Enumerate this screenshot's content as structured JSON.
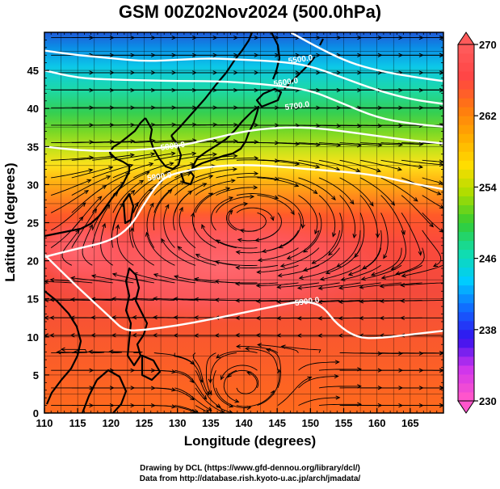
{
  "title": "GSM 00Z02Nov2024 (500.0hPa)",
  "xlabel": "Longitude (degrees)",
  "ylabel": "Latitude (degrees)",
  "credits": [
    "Drawing by DCL (https://www.gfd-dennou.org/library/dcl/)",
    "Data from http://database.rish.kyoto-u.ac.jp/arch/jmadata/"
  ],
  "chart_data": {
    "type": "heatmap",
    "variable": "temperature (K) shading, geopotential height contours, wind streamlines",
    "xlim": [
      110,
      170
    ],
    "ylim": [
      0,
      50
    ],
    "x_ticks": [
      110,
      115,
      120,
      125,
      130,
      135,
      140,
      145,
      150,
      155,
      160,
      165
    ],
    "y_ticks": [
      0,
      5,
      10,
      15,
      20,
      25,
      30,
      35,
      40,
      45
    ],
    "colorbar": {
      "min": 230,
      "max": 270,
      "tick_values": [
        230,
        238,
        246,
        254,
        262,
        270
      ],
      "tick_labels": [
        "230",
        "238",
        "246",
        "254",
        "262",
        "270"
      ]
    },
    "contour_labels": [
      {
        "text": "5500.0",
        "lon": 148.5,
        "lat": 46.4
      },
      {
        "text": "5600.0",
        "lon": 146.3,
        "lat": 43.4
      },
      {
        "text": "5700.0",
        "lon": 148.0,
        "lat": 40.3
      },
      {
        "text": "5800.0",
        "lon": 129.3,
        "lat": 35.0
      },
      {
        "text": "5900.0",
        "lon": 127.3,
        "lat": 31.0
      },
      {
        "text": "5900.0",
        "lon": 149.5,
        "lat": 14.6
      }
    ],
    "contours": [
      {
        "level": 5500,
        "points": [
          [
            147,
            50
          ],
          [
            152,
            47.6
          ],
          [
            156,
            46
          ],
          [
            160,
            45
          ],
          [
            165,
            44.2
          ],
          [
            170,
            43.6
          ]
        ]
      },
      {
        "level": 5600,
        "points": [
          [
            110,
            47.6
          ],
          [
            115,
            47
          ],
          [
            120,
            46.6
          ],
          [
            125,
            46.2
          ],
          [
            130,
            46.4
          ],
          [
            135,
            46.6
          ],
          [
            140,
            46.4
          ],
          [
            145,
            46.2
          ],
          [
            150,
            45.6
          ],
          [
            155,
            44
          ],
          [
            160,
            42.4
          ],
          [
            165,
            41.2
          ],
          [
            170,
            40.6
          ]
        ]
      },
      {
        "level": 5700,
        "points": [
          [
            110,
            45
          ],
          [
            115,
            44
          ],
          [
            120,
            43.8
          ],
          [
            125,
            43.7
          ],
          [
            130,
            43.6
          ],
          [
            135,
            43.6
          ],
          [
            140,
            43.4
          ],
          [
            145,
            43
          ],
          [
            150,
            42.4
          ],
          [
            155,
            40.6
          ],
          [
            160,
            38.8
          ],
          [
            165,
            38
          ],
          [
            170,
            37.6
          ]
        ]
      },
      {
        "level": 5800,
        "points": [
          [
            110,
            35
          ],
          [
            115,
            34.5
          ],
          [
            120,
            34.4
          ],
          [
            125,
            34.6
          ],
          [
            128,
            34.9
          ],
          [
            131,
            35.2
          ],
          [
            135,
            36
          ],
          [
            140,
            37
          ],
          [
            145,
            37.5
          ],
          [
            150,
            37.5
          ],
          [
            155,
            37
          ],
          [
            160,
            36.4
          ],
          [
            165,
            35.8
          ],
          [
            170,
            35.4
          ]
        ]
      },
      {
        "level": 5900,
        "points": [
          [
            110,
            20.5
          ],
          [
            115,
            21.6
          ],
          [
            120,
            22.6
          ],
          [
            123,
            24.5
          ],
          [
            125,
            27.5
          ],
          [
            127.5,
            30.7
          ],
          [
            130,
            31.6
          ],
          [
            135,
            32.4
          ],
          [
            140,
            32.6
          ],
          [
            145,
            32.4
          ],
          [
            150,
            32
          ],
          [
            155,
            31.7
          ],
          [
            160,
            31.2
          ],
          [
            165,
            30.2
          ],
          [
            170,
            29.4
          ]
        ]
      },
      {
        "level": 5900,
        "points": [
          [
            110,
            20.8
          ],
          [
            115,
            16.5
          ],
          [
            120,
            12.5
          ],
          [
            122,
            10.8
          ],
          [
            125,
            10.9
          ],
          [
            130,
            11.5
          ],
          [
            135,
            12.3
          ],
          [
            140,
            13.2
          ],
          [
            145,
            14.1
          ],
          [
            148,
            14.6
          ],
          [
            150,
            14.6
          ],
          [
            152,
            13.9
          ],
          [
            154,
            11.6
          ],
          [
            157,
            9.9
          ],
          [
            160,
            9.8
          ],
          [
            165,
            10.3
          ],
          [
            170,
            10.8
          ]
        ]
      }
    ]
  },
  "colors": {
    "colorbar_stops": [
      "#ff55cc",
      "#cc33ee",
      "#3311ee",
      "#1166ff",
      "#00ccff",
      "#11ddaa",
      "#33cc33",
      "#aadd00",
      "#ffdd00",
      "#ffaa00",
      "#ff7711",
      "#ff4444",
      "#ff5a5a"
    ],
    "contour": "#ffffff",
    "coast": "#000000",
    "stream": "#000000",
    "grid": "#000000"
  }
}
